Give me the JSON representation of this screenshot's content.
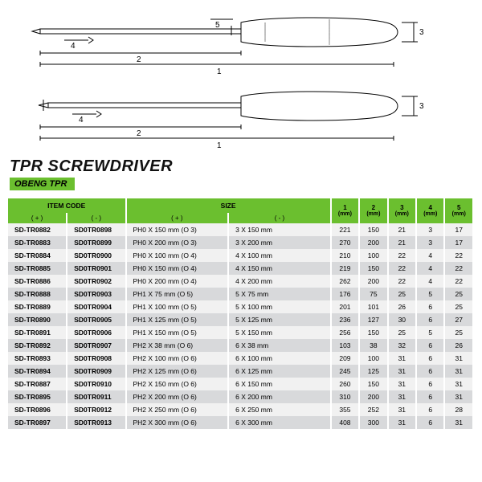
{
  "title": "TPR SCREWDRIVER",
  "subtitle": "OBENG TPR",
  "colors": {
    "accent": "#6bbf2f",
    "row_odd": "#f1f1f1",
    "row_even": "#d8d9db",
    "text": "#000000",
    "bg": "#ffffff"
  },
  "diagram": {
    "type": "technical-drawing",
    "items": [
      "flat-screwdriver",
      "phillips-screwdriver"
    ],
    "dim_labels": [
      "1",
      "2",
      "3",
      "4",
      "5"
    ],
    "stroke": "#000000",
    "stroke_width": 1
  },
  "table": {
    "header_groups": [
      {
        "label": "ITEM CODE",
        "colspan": 2
      },
      {
        "label": "SIZE",
        "colspan": 2
      }
    ],
    "dim_headers": [
      {
        "n": "1",
        "unit": "(mm)"
      },
      {
        "n": "2",
        "unit": "(mm)"
      },
      {
        "n": "3",
        "unit": "(mm)"
      },
      {
        "n": "4",
        "unit": "(mm)"
      },
      {
        "n": "5",
        "unit": "(mm)"
      }
    ],
    "subheaders": [
      "( + )",
      "( - )",
      "( + )",
      "( - )"
    ],
    "rows": [
      [
        "SD-TR0882",
        "SD0TR0898",
        "PH0 X 150 mm (O 3)",
        "3 X 150 mm",
        "221",
        "150",
        "21",
        "3",
        "17"
      ],
      [
        "SD-TR0883",
        "SD0TR0899",
        "PH0 X 200 mm (O 3)",
        "3 X 200 mm",
        "270",
        "200",
        "21",
        "3",
        "17"
      ],
      [
        "SD-TR0884",
        "SD0TR0900",
        "PH0 X 100 mm (O 4)",
        "4 X 100 mm",
        "210",
        "100",
        "22",
        "4",
        "22"
      ],
      [
        "SD-TR0885",
        "SD0TR0901",
        "PH0 X 150 mm (O 4)",
        "4 X 150 mm",
        "219",
        "150",
        "22",
        "4",
        "22"
      ],
      [
        "SD-TR0886",
        "SD0TR0902",
        "PH0 X 200 mm (O 4)",
        "4 X 200 mm",
        "262",
        "200",
        "22",
        "4",
        "22"
      ],
      [
        "SD-TR0888",
        "SD0TR0903",
        "PH1 X 75   mm (O 5)",
        "5 X 75  mm",
        "176",
        "75",
        "25",
        "5",
        "25"
      ],
      [
        "SD-TR0889",
        "SD0TR0904",
        "PH1 X 100 mm (O 5)",
        "5 X 100 mm",
        "201",
        "101",
        "26",
        "6",
        "25"
      ],
      [
        "SD-TR0890",
        "SD0TR0905",
        "PH1 X 125 mm (O 5)",
        "5 X 125 mm",
        "236",
        "127",
        "30",
        "6",
        "27"
      ],
      [
        "SD-TR0891",
        "SD0TR0906",
        "PH1 X 150 mm (O 5)",
        "5 X 150 mm",
        "256",
        "150",
        "25",
        "5",
        "25"
      ],
      [
        "SD-TR0892",
        "SD0TR0907",
        "PH2 X 38   mm (O 6)",
        "6 X 38  mm",
        "103",
        "38",
        "32",
        "6",
        "26"
      ],
      [
        "SD-TR0893",
        "SD0TR0908",
        "PH2 X 100 mm (O 6)",
        "6 X 100 mm",
        "209",
        "100",
        "31",
        "6",
        "31"
      ],
      [
        "SD-TR0894",
        "SD0TR0909",
        "PH2 X 125 mm (O 6)",
        "6 X 125 mm",
        "245",
        "125",
        "31",
        "6",
        "31"
      ],
      [
        "SD-TR0887",
        "SD0TR0910",
        "PH2 X 150 mm (O 6)",
        "6 X 150 mm",
        "260",
        "150",
        "31",
        "6",
        "31"
      ],
      [
        "SD-TR0895",
        "SD0TR0911",
        "PH2 X 200 mm (O 6)",
        "6 X 200 mm",
        "310",
        "200",
        "31",
        "6",
        "31"
      ],
      [
        "SD-TR0896",
        "SD0TR0912",
        "PH2 X 250 mm (O 6)",
        "6 X 250 mm",
        "355",
        "252",
        "31",
        "6",
        "28"
      ],
      [
        "SD-TR0897",
        "SD0TR0913",
        "PH2 X 300 mm (O 6)",
        "6 X 300 mm",
        "408",
        "300",
        "31",
        "6",
        "31"
      ]
    ]
  }
}
